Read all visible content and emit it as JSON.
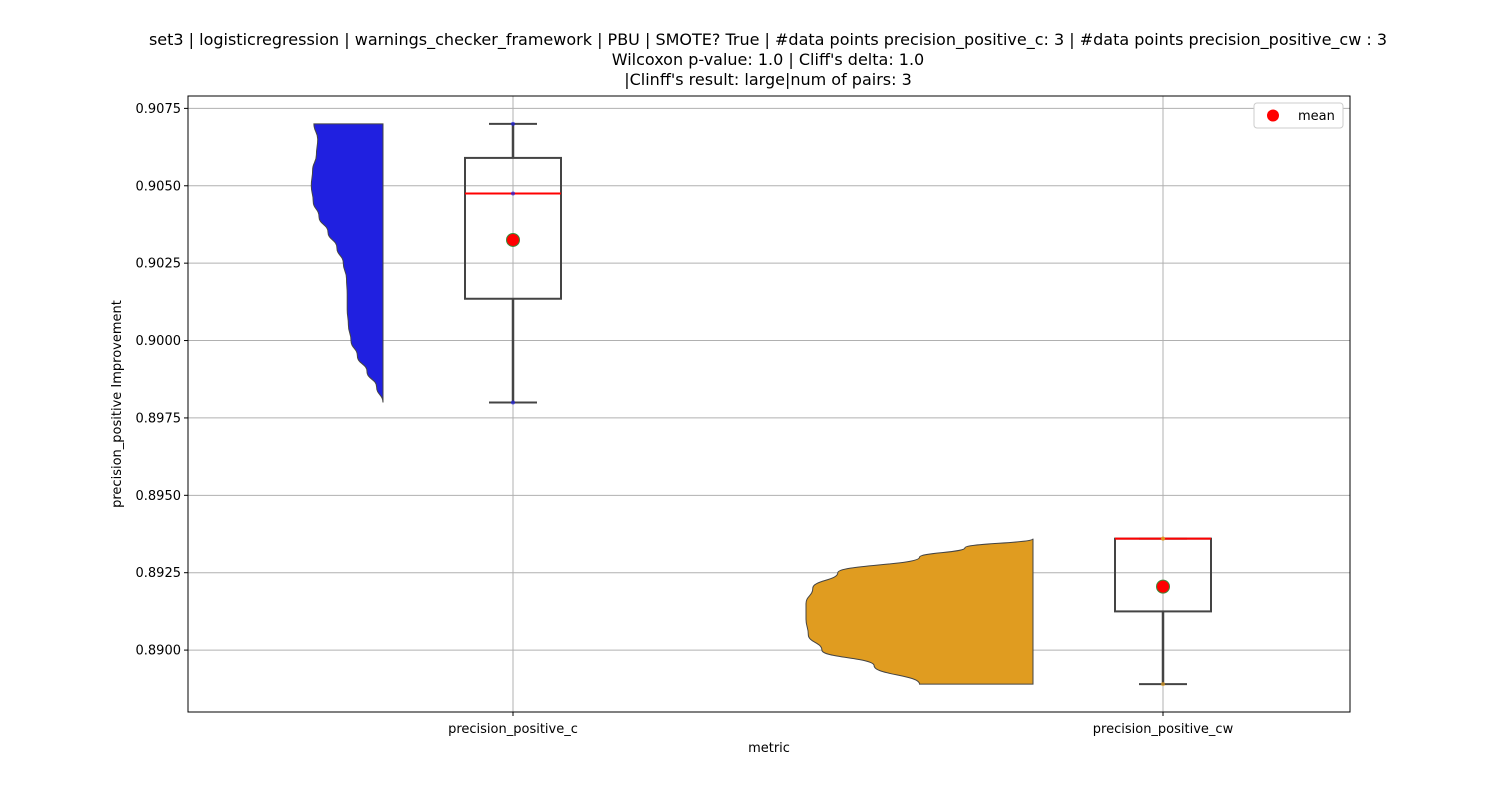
{
  "chart_data": {
    "type": "violin-box",
    "title_lines": [
      "set3 | logisticregression | warnings_checker_framework | PBU | SMOTE? True | #data points precision_positive_c: 3 | #data points precision_positive_cw : 3",
      "Wilcoxon p-value: 1.0 | Cliff's delta: 1.0",
      "|Clinff's result: large|num of pairs: 3"
    ],
    "xlabel": "metric",
    "ylabel": "precision_positive Improvement",
    "ylim": [
      0.888,
      0.9079
    ],
    "yticks": [
      0.89,
      0.8925,
      0.895,
      0.8975,
      0.9,
      0.9025,
      0.905,
      0.9075
    ],
    "ytick_labels": [
      "0.8900",
      "0.8925",
      "0.8950",
      "0.8975",
      "0.9000",
      "0.9025",
      "0.9050",
      "0.9075"
    ],
    "grid": true,
    "legend": {
      "position": "top-right",
      "entries": [
        {
          "label": "mean",
          "color": "#ff0000"
        }
      ]
    },
    "categories": [
      "precision_positive_c",
      "precision_positive_cw"
    ],
    "series": [
      {
        "category": "precision_positive_c",
        "color": "#2020e0",
        "violin_side": "left",
        "density": [
          [
            0.898,
            0.0
          ],
          [
            0.8985,
            0.1
          ],
          [
            0.899,
            0.25
          ],
          [
            0.8995,
            0.4
          ],
          [
            0.9,
            0.5
          ],
          [
            0.9005,
            0.54
          ],
          [
            0.901,
            0.56
          ],
          [
            0.9015,
            0.56
          ],
          [
            0.902,
            0.57
          ],
          [
            0.9025,
            0.62
          ],
          [
            0.903,
            0.72
          ],
          [
            0.9035,
            0.86
          ],
          [
            0.904,
            1.0
          ],
          [
            0.9045,
            1.09
          ],
          [
            0.905,
            1.12
          ],
          [
            0.9055,
            1.1
          ],
          [
            0.906,
            1.04
          ],
          [
            0.9065,
            1.02
          ],
          [
            0.907,
            1.08
          ]
        ],
        "box": {
          "whisker_low": 0.898,
          "q1": 0.90135,
          "median": 0.90475,
          "q3": 0.9059,
          "whisker_high": 0.907
        },
        "points": [
          0.898,
          0.90475,
          0.907
        ],
        "mean": 0.90325
      },
      {
        "category": "precision_positive_cw",
        "color": "#e09c20",
        "violin_side": "left",
        "density": [
          [
            0.8889,
            0.5
          ],
          [
            0.8895,
            0.7
          ],
          [
            0.89,
            0.93
          ],
          [
            0.8905,
            0.99
          ],
          [
            0.891,
            1.0
          ],
          [
            0.8915,
            1.0
          ],
          [
            0.892,
            0.97
          ],
          [
            0.8925,
            0.86
          ],
          [
            0.893,
            0.5
          ],
          [
            0.8933,
            0.3
          ],
          [
            0.8936,
            0.0
          ]
        ],
        "box": {
          "whisker_low": 0.8889,
          "q1": 0.89125,
          "median": 0.8936,
          "q3": 0.8936,
          "whisker_high": 0.8936
        },
        "points": [
          0.8889,
          0.8936,
          0.8936
        ],
        "mean": 0.89205
      }
    ]
  }
}
